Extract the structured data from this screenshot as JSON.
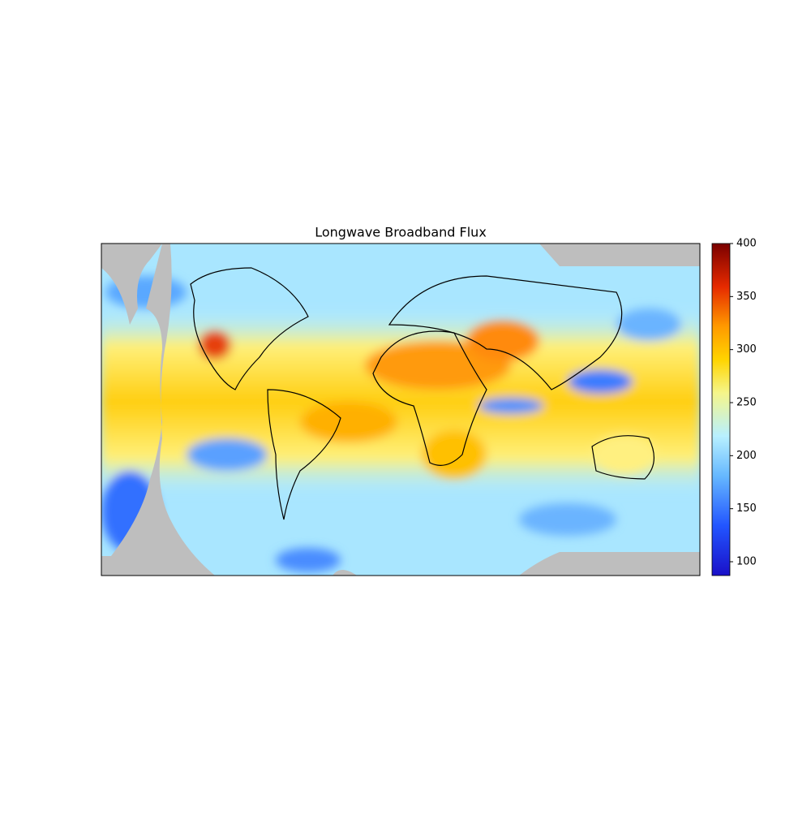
{
  "title": "Longwave Broadband Flux",
  "colorbar": {
    "lim": [
      87,
      400
    ],
    "ticks": [
      100,
      150,
      200,
      250,
      300,
      350,
      400
    ]
  }
}
